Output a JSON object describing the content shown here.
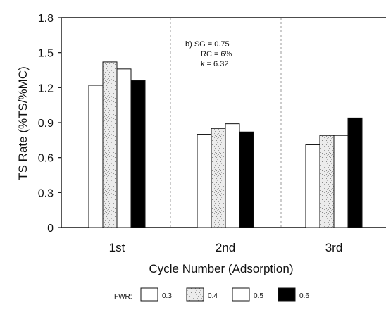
{
  "chart_data": {
    "type": "bar",
    "categories": [
      "1st",
      "2nd",
      "3rd"
    ],
    "series": [
      {
        "name": "0.3",
        "values": [
          1.22,
          0.8,
          0.71
        ]
      },
      {
        "name": "0.4",
        "values": [
          1.42,
          0.85,
          0.79
        ]
      },
      {
        "name": "0.5",
        "values": [
          1.36,
          0.89,
          0.79
        ]
      },
      {
        "name": "0.6",
        "values": [
          1.26,
          0.82,
          0.94
        ]
      }
    ],
    "xlabel": "Cycle Number (Adsorption)",
    "ylabel": "TS Rate (%TS/%MC)",
    "ylim": [
      0,
      1.8
    ],
    "yticks": [
      "0",
      "0.3",
      "0.6",
      "0.9",
      "1.2",
      "1.5",
      "1.8"
    ],
    "grid": false,
    "legend": {
      "title": "FWR:",
      "placement": "bottom-center"
    },
    "annotation": [
      "b)  SG = 0.75",
      "RC = 6%",
      "k = 6.32"
    ],
    "colors": {
      "0.3": "#ffffff",
      "0.4": "#d9d9d9",
      "0.5": "#ffffff",
      "0.6": "#000000",
      "axis": "#111111",
      "separator": "#9a9a9a"
    }
  }
}
